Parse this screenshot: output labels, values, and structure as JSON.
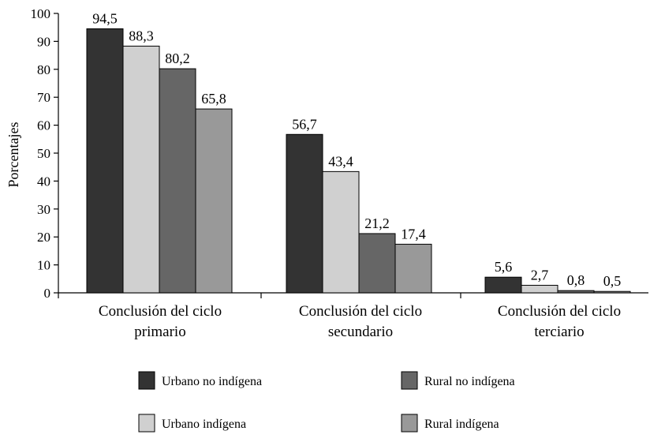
{
  "chart_data": {
    "type": "bar",
    "title": "",
    "xlabel": "",
    "ylabel": "Porcentajes",
    "ylim": [
      0,
      100
    ],
    "yticks": [
      0,
      10,
      20,
      30,
      40,
      50,
      60,
      70,
      80,
      90,
      100
    ],
    "grid": false,
    "legend_position": "bottom",
    "categories": [
      [
        "Conclusión del ciclo",
        "primario"
      ],
      [
        "Conclusión del ciclo",
        "secundario"
      ],
      [
        "Conclusión del ciclo",
        "terciario"
      ]
    ],
    "series": [
      {
        "name": "Urbano no indígena",
        "color": "#333333",
        "values": [
          94.5,
          56.7,
          5.6
        ],
        "labels": [
          "94,5",
          "56,7",
          "5,6"
        ]
      },
      {
        "name": "Urbano indígena",
        "color": "#d0d0d0",
        "values": [
          88.3,
          43.4,
          2.7
        ],
        "labels": [
          "88,3",
          "43,4",
          "2,7"
        ]
      },
      {
        "name": "Rural no indígena",
        "color": "#666666",
        "values": [
          80.2,
          21.2,
          0.8
        ],
        "labels": [
          "80,2",
          "21,2",
          "0,8"
        ]
      },
      {
        "name": "Rural indígena",
        "color": "#999999",
        "values": [
          65.8,
          17.4,
          0.5
        ],
        "labels": [
          "65,8",
          "17,4",
          "0,5"
        ]
      }
    ]
  }
}
